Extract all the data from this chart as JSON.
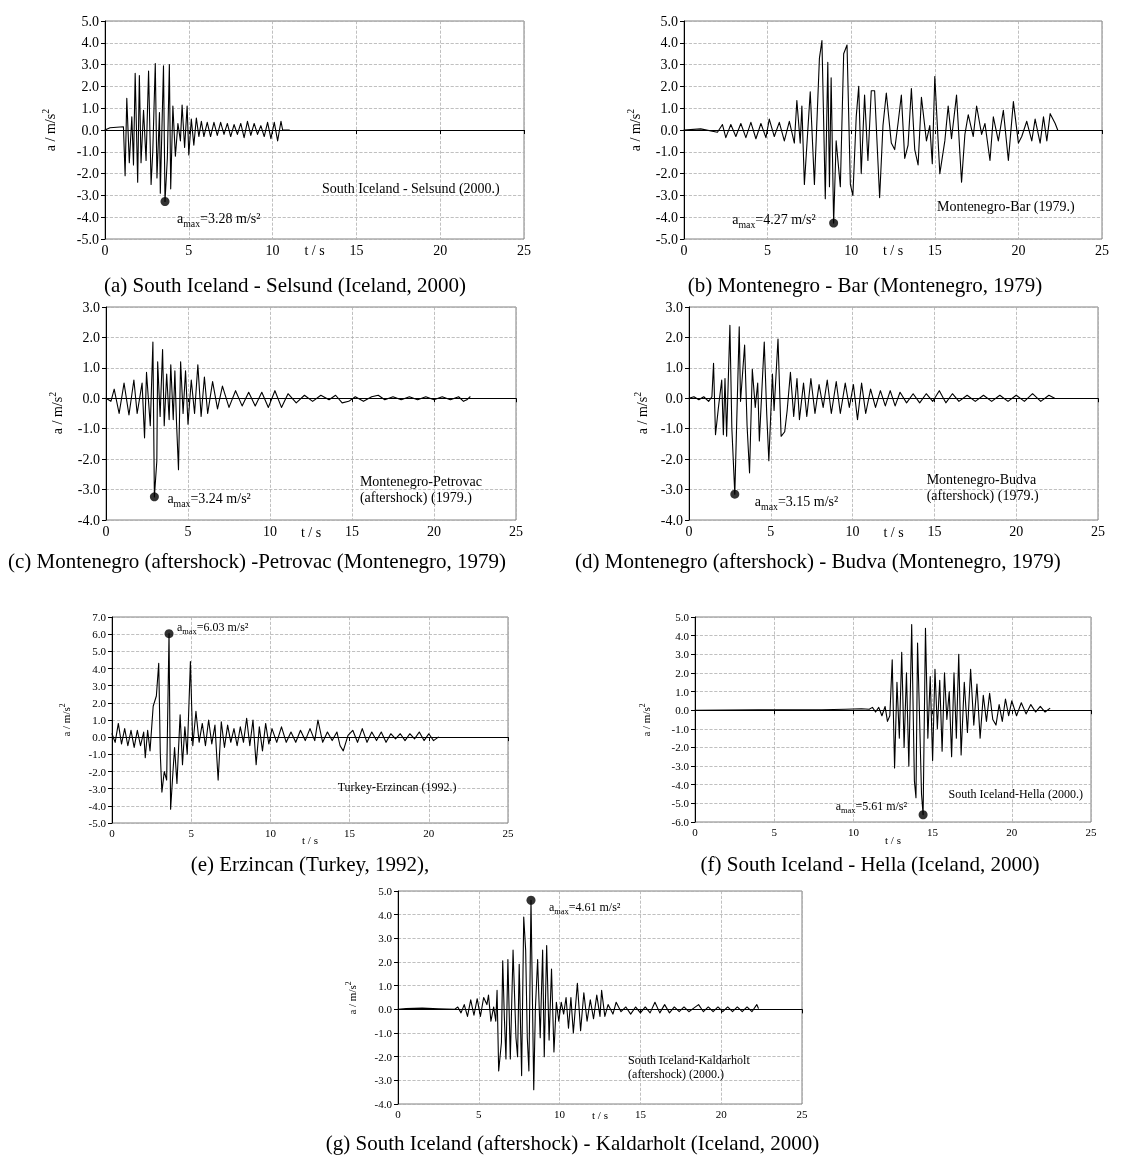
{
  "chart_data": [
    {
      "type": "line",
      "title": "(a) South Iceland - Selsund (Iceland, 2000)",
      "xlabel": "t / s",
      "ylabel": "a / m/s$^{2}$",
      "grid": true,
      "xlim": [
        0,
        25
      ],
      "xticks": [
        0,
        5,
        10,
        15,
        20,
        25
      ],
      "ylim": [
        -5,
        5
      ],
      "yticks": [
        {
          "value": -5,
          "label": "-5.0"
        },
        {
          "value": -4,
          "label": "-4.0"
        },
        {
          "value": -3,
          "label": "-3.0"
        },
        {
          "value": -2,
          "label": "-2.0"
        },
        {
          "value": -1,
          "label": "-1.0"
        },
        {
          "value": 0,
          "label": "0.0"
        },
        {
          "value": 1,
          "label": "1.0"
        },
        {
          "value": 2,
          "label": "2.0"
        },
        {
          "value": 3,
          "label": "3.0"
        },
        {
          "value": 4,
          "label": "4.0"
        },
        {
          "value": 5,
          "label": "5.0"
        }
      ],
      "annotations": [
        {
          "text": "a$_{max}$=3.28 m/s²",
          "x": 3.58,
          "y": -3.28
        },
        "South Iceland - Selsund (2000.)"
      ],
      "series": [
        {
          "type": "line",
          "color": "#000000",
          "marker": "none",
          "x": [
            0,
            0.3,
            1.1,
            1.2,
            1.3,
            1.45,
            1.6,
            1.7,
            1.8,
            1.95,
            2.05,
            2.15,
            2.3,
            2.45,
            2.6,
            2.75,
            2.85,
            3.0,
            3.1,
            3.25,
            3.3,
            3.49,
            3.58,
            3.72,
            3.84,
            3.92,
            4.05,
            4.2,
            4.35,
            4.5,
            4.6,
            4.75,
            4.9,
            5.0,
            5.15,
            5.3,
            5.45,
            5.6,
            5.75,
            5.9,
            6.1,
            6.3,
            6.5,
            6.7,
            6.9,
            7.1,
            7.3,
            7.5,
            7.7,
            7.9,
            8.1,
            8.3,
            8.5,
            8.7,
            8.9,
            9.1,
            9.3,
            9.5,
            9.7,
            9.9,
            10.1,
            10.3,
            10.5,
            10.6,
            11.0
          ],
          "values": [
            0,
            0.1,
            0.15,
            -2.1,
            1.45,
            -1.5,
            0.6,
            -1.6,
            2.6,
            -2.4,
            2.5,
            -1.5,
            0.9,
            -1.4,
            2.7,
            -2.5,
            -1.0,
            3.05,
            -2.2,
            0.8,
            -2.9,
            2.95,
            -3.28,
            -1.3,
            3.0,
            -2.7,
            1.1,
            -1.2,
            0.3,
            -0.5,
            1.15,
            -0.8,
            1.1,
            -1.15,
            0.5,
            -0.7,
            0.55,
            -0.3,
            0.4,
            -0.3,
            0.35,
            -0.3,
            0.35,
            -0.25,
            0.35,
            -0.2,
            0.3,
            -0.3,
            0.25,
            -0.2,
            0.3,
            -0.35,
            0.4,
            -0.25,
            0.3,
            -0.2,
            0.2,
            -0.3,
            0.35,
            -0.4,
            0.35,
            -0.5,
            0.4,
            0,
            0
          ]
        },
        {
          "type": "scatter",
          "color": "#000000",
          "marker": "circle",
          "x": [
            3.58
          ],
          "values": [
            -3.28
          ]
        }
      ]
    },
    {
      "type": "line",
      "title": "(b) Montenegro - Bar (Montenegro, 1979)",
      "xlabel": "t / s",
      "ylabel": "a / m/s$^{2}$",
      "grid": true,
      "xlim": [
        0,
        25
      ],
      "xticks": [
        0,
        5,
        10,
        15,
        20,
        25
      ],
      "ylim": [
        -5,
        5
      ],
      "yticks": [
        {
          "value": -5,
          "label": "-5.0"
        },
        {
          "value": -4,
          "label": "-4.0"
        },
        {
          "value": -3,
          "label": "-3.0"
        },
        {
          "value": -2,
          "label": "-2.0"
        },
        {
          "value": -1,
          "label": "-1.0"
        },
        {
          "value": 0,
          "label": "0.0"
        },
        {
          "value": 1,
          "label": "1.0"
        },
        {
          "value": 2,
          "label": "2.0"
        },
        {
          "value": 3,
          "label": "3.0"
        },
        {
          "value": 4,
          "label": "4.0"
        },
        {
          "value": 5,
          "label": "5.0"
        }
      ],
      "annotations": [
        {
          "text": "a$_{max}$=4.27 m/s²",
          "x": 8.95,
          "y": -4.27
        },
        "Montenegro-Bar (1979.)"
      ],
      "series": [
        {
          "type": "line",
          "color": "#000000",
          "marker": "none",
          "x": [
            0,
            1,
            2,
            2.3,
            2.5,
            2.8,
            3.1,
            3.4,
            3.7,
            4.0,
            4.3,
            4.6,
            4.9,
            5.1,
            5.4,
            5.7,
            6.0,
            6.3,
            6.6,
            6.75,
            6.95,
            7.05,
            7.2,
            7.55,
            7.8,
            8.1,
            8.25,
            8.45,
            8.6,
            8.7,
            8.8,
            8.95,
            9.1,
            9.35,
            9.55,
            9.75,
            9.95,
            10.1,
            10.3,
            10.45,
            10.6,
            10.8,
            11.0,
            11.2,
            11.4,
            11.7,
            11.9,
            12.1,
            12.4,
            12.6,
            12.8,
            13.0,
            13.2,
            13.4,
            13.6,
            13.8,
            14.0,
            14.2,
            14.5,
            14.7,
            14.85,
            15.0,
            15.3,
            15.6,
            15.8,
            16.0,
            16.3,
            16.6,
            16.8,
            17.0,
            17.3,
            17.5,
            17.8,
            18.0,
            18.3,
            18.5,
            18.8,
            19.1,
            19.4,
            19.7,
            20.0,
            20.2,
            20.5,
            20.8,
            21.0,
            21.3,
            21.5,
            21.7,
            21.9,
            22.2,
            22.35
          ],
          "values": [
            0,
            0.05,
            -0.1,
            0.25,
            -0.35,
            0.25,
            -0.3,
            0.3,
            -0.35,
            0.35,
            -0.4,
            0.3,
            -0.35,
            0.5,
            -0.3,
            0.35,
            -0.5,
            0.4,
            -0.6,
            1.35,
            -0.6,
            1.1,
            -2.5,
            1.75,
            -2.5,
            3.3,
            4.1,
            -3.15,
            3.1,
            -2.6,
            2.4,
            -4.27,
            -0.5,
            -2.6,
            3.5,
            3.9,
            -2.5,
            -3.0,
            0.6,
            2.0,
            -2.0,
            1.6,
            -1.4,
            1.8,
            1.8,
            -3.1,
            0.2,
            1.7,
            -0.6,
            -0.9,
            0.3,
            1.6,
            -1.3,
            -0.7,
            1.9,
            -0.9,
            -1.6,
            1.5,
            -0.5,
            0.2,
            -1.55,
            2.45,
            -2.0,
            -0.5,
            1.1,
            -0.4,
            1.6,
            -2.4,
            -0.2,
            0.7,
            -0.3,
            1.1,
            -0.2,
            0.3,
            -1.4,
            0.6,
            -0.5,
            0.9,
            -1.4,
            1.3,
            -0.6,
            -0.3,
            0.4,
            -0.5,
            0.5,
            -0.6,
            0.6,
            -0.5,
            0.75,
            0.3,
            0
          ]
        },
        {
          "type": "scatter",
          "color": "#000000",
          "marker": "circle",
          "x": [
            8.95
          ],
          "values": [
            -4.27
          ]
        }
      ]
    },
    {
      "type": "line",
      "title": "(c) Montenegro (aftershock) -Petrovac (Montenegro, 1979)",
      "xlabel": "t / s",
      "ylabel": "a / m/s$^{2}$",
      "grid": true,
      "xlim": [
        0,
        25
      ],
      "xticks": [
        0,
        5,
        10,
        15,
        20,
        25
      ],
      "ylim": [
        -4,
        3
      ],
      "yticks": [
        {
          "value": -4,
          "label": "-4.0"
        },
        {
          "value": -3,
          "label": "-3.0"
        },
        {
          "value": -2,
          "label": "-2.0"
        },
        {
          "value": -1,
          "label": "-1.0"
        },
        {
          "value": 0,
          "label": "0.0"
        },
        {
          "value": 1,
          "label": "1.0"
        },
        {
          "value": 2,
          "label": "2.0"
        },
        {
          "value": 3,
          "label": "3.0"
        }
      ],
      "annotations": [
        {
          "text": "a$_{max}$=3.24 m/s²",
          "x": 2.95,
          "y": -3.24
        },
        "Montenegro-Petrovac (aftershock) (1979.)"
      ],
      "series": [
        {
          "type": "line",
          "color": "#000000",
          "marker": "none",
          "x": [
            0,
            0.3,
            0.5,
            0.8,
            1.1,
            1.4,
            1.7,
            1.9,
            2.2,
            2.35,
            2.47,
            2.7,
            2.86,
            2.95,
            3.1,
            3.15,
            3.3,
            3.45,
            3.55,
            3.7,
            3.85,
            3.95,
            4.1,
            4.2,
            4.3,
            4.42,
            4.55,
            4.7,
            4.85,
            5.0,
            5.2,
            5.4,
            5.6,
            5.8,
            6.0,
            6.2,
            6.5,
            6.8,
            7.1,
            7.5,
            7.9,
            8.3,
            8.7,
            9.1,
            9.5,
            9.9,
            10.3,
            10.7,
            11.1,
            11.6,
            12.1,
            12.6,
            13.1,
            13.6,
            14.0,
            14.4,
            14.8,
            15.2,
            15.7,
            16.2,
            16.6,
            17.0,
            17.5,
            18.0,
            18.5,
            19.0,
            19.5,
            20.0,
            20.5,
            21.0,
            21.5,
            21.8,
            22.0,
            22.2
          ],
          "values": [
            0,
            -0.1,
            0.3,
            -0.5,
            0.5,
            -0.55,
            0.6,
            -0.5,
            0.5,
            -1.3,
            0.85,
            -0.9,
            1.85,
            -3.24,
            -2.05,
            1.2,
            -0.6,
            1.6,
            -0.9,
            0.8,
            -0.7,
            1.1,
            -0.7,
            0.9,
            -0.8,
            -2.35,
            1.2,
            -0.5,
            0.9,
            -0.85,
            0.6,
            -0.5,
            1.1,
            -0.6,
            0.7,
            -0.5,
            0.55,
            -0.35,
            0.4,
            -0.3,
            0.25,
            -0.25,
            0.2,
            -0.25,
            0.2,
            -0.3,
            0.25,
            -0.3,
            0.15,
            -0.15,
            0.1,
            -0.1,
            0.1,
            -0.05,
            0.1,
            -0.15,
            -0.1,
            0.05,
            -0.1,
            0.05,
            0.1,
            -0.05,
            0.05,
            -0.05,
            0.05,
            -0.05,
            0.05,
            -0.05,
            0.05,
            -0.05,
            0.05,
            -0.1,
            -0.05,
            0.05
          ]
        },
        {
          "type": "scatter",
          "color": "#000000",
          "marker": "circle",
          "x": [
            2.95
          ],
          "values": [
            -3.24
          ]
        }
      ]
    },
    {
      "type": "line",
      "title": "(d) Montenegro (aftershock) - Budva (Montenegro, 1979)",
      "xlabel": "t / s",
      "ylabel": "a / m/s$^{2}$",
      "grid": true,
      "xlim": [
        0,
        25
      ],
      "xticks": [
        0,
        5,
        10,
        15,
        20,
        25
      ],
      "ylim": [
        -4,
        3
      ],
      "yticks": [
        {
          "value": -4,
          "label": "-4.0"
        },
        {
          "value": -3,
          "label": "-3.0"
        },
        {
          "value": -2,
          "label": "-2.0"
        },
        {
          "value": -1,
          "label": "-1.0"
        },
        {
          "value": 0,
          "label": "0.0"
        },
        {
          "value": 1,
          "label": "1.0"
        },
        {
          "value": 2,
          "label": "2.0"
        },
        {
          "value": 3,
          "label": "3.0"
        }
      ],
      "annotations": [
        {
          "text": "a$_{max}$=3.15 m/s²",
          "x": 2.8,
          "y": -3.15
        },
        "Montenegro-Budva (aftershock)  (1979.)"
      ],
      "series": [
        {
          "type": "line",
          "color": "#000000",
          "marker": "none",
          "x": [
            0,
            0.3,
            0.6,
            0.9,
            1.2,
            1.4,
            1.5,
            1.62,
            1.8,
            2.0,
            2.1,
            2.2,
            2.3,
            2.5,
            2.62,
            2.8,
            3.07,
            3.15,
            3.4,
            3.55,
            3.7,
            3.87,
            4.05,
            4.2,
            4.3,
            4.6,
            4.75,
            4.88,
            5.1,
            5.2,
            5.44,
            5.63,
            5.85,
            6.0,
            6.2,
            6.4,
            6.6,
            6.75,
            7.0,
            7.2,
            7.45,
            7.7,
            7.95,
            8.2,
            8.45,
            8.7,
            9.0,
            9.25,
            9.55,
            9.8,
            10.05,
            10.3,
            10.55,
            10.8,
            11.1,
            11.4,
            11.7,
            12.0,
            12.3,
            12.6,
            12.9,
            13.3,
            13.7,
            14.1,
            14.5,
            14.9,
            15.3,
            15.7,
            16.1,
            16.5,
            17.0,
            17.5,
            18.0,
            18.5,
            19.0,
            19.5,
            20.0,
            20.5,
            21.0,
            21.5,
            22.0,
            22.35
          ],
          "values": [
            0,
            0.05,
            -0.05,
            0.05,
            -0.1,
            0.05,
            1.15,
            -1.2,
            -0.3,
            0.6,
            -1.2,
            0.65,
            -1.25,
            2.4,
            -1.0,
            -3.15,
            2.35,
            -0.1,
            1.75,
            -0.9,
            -2.45,
            0.95,
            -0.3,
            0.5,
            -1.4,
            1.85,
            -0.5,
            -2.05,
            0.8,
            -0.4,
            1.95,
            -1.25,
            -1.1,
            -0.4,
            0.85,
            -0.6,
            0.65,
            -0.7,
            0.5,
            -0.6,
            0.65,
            -0.5,
            0.45,
            -0.3,
            0.6,
            -0.5,
            0.55,
            -0.5,
            0.5,
            -0.3,
            0.45,
            -0.7,
            0.5,
            -0.5,
            0.3,
            -0.3,
            0.25,
            -0.25,
            0.25,
            -0.25,
            0.2,
            -0.15,
            0.15,
            -0.15,
            0.15,
            -0.1,
            0.25,
            -0.15,
            0.15,
            -0.1,
            0.1,
            -0.1,
            0.1,
            -0.1,
            0.1,
            -0.1,
            0.1,
            -0.1,
            0.15,
            -0.1,
            0.1,
            0
          ]
        },
        {
          "type": "scatter",
          "color": "#000000",
          "marker": "circle",
          "x": [
            2.8
          ],
          "values": [
            -3.15
          ]
        }
      ]
    },
    {
      "type": "line",
      "title": "(e) Erzincan (Turkey, 1992),",
      "xlabel": "t / s",
      "ylabel": "a / m/s$^{2}$",
      "grid": true,
      "xlim": [
        0,
        25
      ],
      "xticks": [
        0,
        5,
        10,
        15,
        20,
        25
      ],
      "ylim": [
        -5,
        7
      ],
      "yticks": [
        {
          "value": -5,
          "label": "-5.0"
        },
        {
          "value": -4,
          "label": "-4.0"
        },
        {
          "value": -3,
          "label": "-3.0"
        },
        {
          "value": -2,
          "label": "-2.0"
        },
        {
          "value": -1,
          "label": "-1.0"
        },
        {
          "value": 0,
          "label": "0.0"
        },
        {
          "value": 1,
          "label": "1.0"
        },
        {
          "value": 2,
          "label": "2.0"
        },
        {
          "value": 3,
          "label": "3.0"
        },
        {
          "value": 4,
          "label": "4.0"
        },
        {
          "value": 5,
          "label": "5.0"
        },
        {
          "value": 6,
          "label": "6.0"
        },
        {
          "value": 7,
          "label": "7.0"
        }
      ],
      "annotations": [
        {
          "text": "a$_{max}$=6.03 m/s²",
          "x": 3.6,
          "y": 6.03
        },
        "Turkey-Erzincan (1992.)"
      ],
      "series": [
        {
          "type": "line",
          "color": "#000000",
          "marker": "none",
          "x": [
            0,
            0.2,
            0.4,
            0.6,
            0.8,
            1.0,
            1.2,
            1.4,
            1.6,
            1.8,
            2.0,
            2.1,
            2.25,
            2.4,
            2.6,
            2.8,
            2.95,
            3.05,
            3.15,
            3.3,
            3.45,
            3.6,
            3.7,
            3.85,
            3.95,
            4.1,
            4.3,
            4.45,
            4.6,
            4.75,
            4.95,
            5.1,
            5.3,
            5.5,
            5.7,
            5.9,
            6.1,
            6.3,
            6.5,
            6.7,
            6.9,
            7.1,
            7.3,
            7.5,
            7.7,
            7.9,
            8.1,
            8.3,
            8.5,
            8.7,
            8.9,
            9.1,
            9.3,
            9.5,
            9.7,
            9.9,
            10.1,
            10.4,
            10.7,
            11.0,
            11.3,
            11.6,
            11.9,
            12.2,
            12.5,
            12.8,
            13.0,
            13.3,
            13.6,
            13.9,
            14.2,
            14.4,
            14.6,
            14.9,
            15.2,
            15.5,
            15.8,
            16.1,
            16.4,
            16.7,
            17.0,
            17.3,
            17.6,
            17.9,
            18.2,
            18.5,
            18.8,
            19.1,
            19.4,
            19.7,
            20.0,
            20.3,
            20.6
          ],
          "values": [
            0.2,
            -0.3,
            0.8,
            -0.4,
            0.5,
            -0.5,
            0.4,
            -0.6,
            0.4,
            -0.5,
            0.3,
            -1.2,
            0.4,
            -0.8,
            1.8,
            2.4,
            4.3,
            -1.0,
            -3.2,
            -2.0,
            -2.5,
            6.03,
            -4.2,
            -2.0,
            -0.6,
            -2.7,
            1.3,
            -1.6,
            0.6,
            -1.0,
            4.4,
            -0.5,
            1.5,
            -0.3,
            0.8,
            -0.5,
            1.0,
            -0.4,
            0.7,
            -2.5,
            0.9,
            -0.6,
            0.7,
            -0.3,
            0.5,
            -0.5,
            0.6,
            -0.3,
            1.1,
            -0.5,
            1.0,
            -1.6,
            0.6,
            -0.8,
            0.8,
            -0.4,
            0.5,
            -0.3,
            0.6,
            -0.3,
            0.3,
            -0.3,
            0.4,
            -0.2,
            0.5,
            -0.2,
            1.0,
            -0.3,
            0.3,
            -0.2,
            0.3,
            -0.5,
            -0.8,
            0.1,
            0.4,
            -0.3,
            0.5,
            -0.3,
            0.3,
            -0.2,
            0.3,
            -0.3,
            0.2,
            -0.1,
            0.2,
            -0.2,
            0.2,
            -0.1,
            0.3,
            -0.2,
            0.2,
            -0.2,
            0
          ]
        },
        {
          "type": "scatter",
          "color": "#000000",
          "marker": "circle",
          "x": [
            3.6
          ],
          "values": [
            6.03
          ]
        }
      ]
    },
    {
      "type": "line",
      "title": "(f) South Iceland - Hella (Iceland, 2000)",
      "xlabel": "t / s",
      "ylabel": "a / m/s$^{2}$",
      "grid": true,
      "xlim": [
        0,
        25
      ],
      "xticks": [
        0,
        5,
        10,
        15,
        20,
        25
      ],
      "ylim": [
        -6,
        5
      ],
      "yticks": [
        {
          "value": -6,
          "label": "-6.0"
        },
        {
          "value": -5,
          "label": "-5.0"
        },
        {
          "value": -4,
          "label": "-4.0"
        },
        {
          "value": -3,
          "label": "-3.0"
        },
        {
          "value": -2,
          "label": "-2.0"
        },
        {
          "value": -1,
          "label": "-1.0"
        },
        {
          "value": 0,
          "label": "0.0"
        },
        {
          "value": 1,
          "label": "1.0"
        },
        {
          "value": 2,
          "label": "2.0"
        },
        {
          "value": 3,
          "label": "3.0"
        },
        {
          "value": 4,
          "label": "4.0"
        },
        {
          "value": 5,
          "label": "5.0"
        }
      ],
      "annotations": [
        {
          "text": "a$_{max}$=5.61 m/s²",
          "x": 14.4,
          "y": -5.61
        },
        "South Iceland-Hella (2000.)"
      ],
      "series": [
        {
          "type": "line",
          "color": "#000000",
          "marker": "none",
          "x": [
            0,
            4,
            8,
            9.5,
            10.5,
            11,
            11.2,
            11.4,
            11.6,
            11.8,
            12.0,
            12.15,
            12.3,
            12.45,
            12.6,
            12.75,
            12.9,
            13.05,
            13.2,
            13.35,
            13.5,
            13.68,
            13.85,
            13.95,
            14.05,
            14.15,
            14.3,
            14.4,
            14.55,
            14.7,
            14.85,
            15.0,
            15.15,
            15.3,
            15.45,
            15.6,
            15.75,
            15.9,
            16.05,
            16.2,
            16.35,
            16.5,
            16.65,
            16.8,
            17.0,
            17.2,
            17.4,
            17.6,
            17.8,
            18.0,
            18.2,
            18.4,
            18.6,
            18.8,
            19.0,
            19.2,
            19.4,
            19.6,
            19.8,
            20.0,
            20.3,
            20.6,
            20.9,
            21.2,
            21.5,
            21.8,
            22.1,
            22.4
          ],
          "values": [
            0,
            0.02,
            0.02,
            0.05,
            0.08,
            0.05,
            0.15,
            -0.1,
            0.15,
            -0.3,
            0.2,
            -0.6,
            -0.3,
            2.7,
            -3.1,
            1.5,
            -1.5,
            3.1,
            -2.0,
            2.0,
            -3.0,
            4.6,
            -3.8,
            -4.7,
            3.6,
            0.5,
            -4.5,
            -5.61,
            4.4,
            -1.5,
            1.8,
            -2.7,
            2.2,
            -1.0,
            1.6,
            -2.2,
            2.0,
            -0.5,
            1.0,
            -2.5,
            2.0,
            -1.5,
            3.0,
            -2.4,
            1.5,
            -1.2,
            2.2,
            -0.8,
            1.4,
            -1.5,
            0.8,
            -0.6,
            0.9,
            -0.5,
            -0.8,
            0.3,
            -0.6,
            0.6,
            -0.3,
            0.5,
            -0.3,
            0.4,
            -0.2,
            0.3,
            -0.1,
            0.2,
            -0.1,
            0.1
          ]
        },
        {
          "type": "scatter",
          "color": "#000000",
          "marker": "circle",
          "x": [
            14.4
          ],
          "values": [
            -5.61
          ]
        }
      ]
    },
    {
      "type": "line",
      "title": "(g) South Iceland (aftershock) - Kaldarholt (Iceland, 2000)",
      "xlabel": "t / s",
      "ylabel": "a / m/s$^{2}$",
      "grid": true,
      "xlim": [
        0,
        25
      ],
      "xticks": [
        0,
        5,
        10,
        15,
        20,
        25
      ],
      "ylim": [
        -4,
        5
      ],
      "yticks": [
        {
          "value": -4,
          "label": "-4.0"
        },
        {
          "value": -3,
          "label": "-3.0"
        },
        {
          "value": -2,
          "label": "-2.0"
        },
        {
          "value": -1,
          "label": "-1.0"
        },
        {
          "value": 0,
          "label": "0.0"
        },
        {
          "value": 1,
          "label": "1.0"
        },
        {
          "value": 2,
          "label": "2.0"
        },
        {
          "value": 3,
          "label": "3.0"
        },
        {
          "value": 4,
          "label": "4.0"
        },
        {
          "value": 5,
          "label": "5.0"
        }
      ],
      "annotations": [
        {
          "text": "a$_{max}$=4.61 m/s²",
          "x": 8.23,
          "y": 4.61
        },
        "South Iceland-Kaldarholt (aftershock) (2000.)"
      ],
      "series": [
        {
          "type": "line",
          "color": "#000000",
          "marker": "none",
          "x": [
            0,
            0.5,
            1.5,
            2.5,
            3.5,
            3.7,
            3.9,
            4.1,
            4.3,
            4.5,
            4.7,
            4.9,
            5.1,
            5.3,
            5.5,
            5.6,
            5.75,
            5.92,
            6.05,
            6.13,
            6.23,
            6.4,
            6.48,
            6.58,
            6.68,
            6.8,
            6.95,
            7.12,
            7.3,
            7.4,
            7.5,
            7.65,
            7.78,
            7.9,
            8.0,
            8.1,
            8.23,
            8.4,
            8.5,
            8.64,
            8.8,
            8.95,
            9.05,
            9.2,
            9.35,
            9.5,
            9.65,
            9.8,
            9.95,
            10.1,
            10.25,
            10.4,
            10.55,
            10.7,
            10.85,
            11.1,
            11.3,
            11.5,
            11.7,
            11.9,
            12.1,
            12.3,
            12.5,
            12.6,
            12.8,
            13.0,
            13.3,
            13.5,
            13.8,
            14.1,
            14.4,
            14.7,
            15.0,
            15.3,
            15.6,
            15.9,
            16.2,
            16.5,
            16.8,
            17.1,
            17.4,
            17.7,
            18.0,
            18.3,
            18.6,
            18.9,
            19.2,
            19.5,
            19.8,
            20.1,
            20.4,
            20.7,
            21.0,
            21.3,
            21.6,
            21.9,
            22.2,
            22.3
          ],
          "values": [
            0,
            0.03,
            0.05,
            0.02,
            0,
            0.1,
            -0.15,
            0.2,
            -0.3,
            0.4,
            -0.25,
            0.45,
            -0.3,
            0.5,
            0.2,
            0.6,
            -0.5,
            0.1,
            -0.5,
            0.8,
            -2.6,
            -1.4,
            2.05,
            -0.3,
            -2.1,
            2.1,
            -2.1,
            2.5,
            -1.2,
            -2.0,
            1.9,
            -2.8,
            3.9,
            2.5,
            -1.2,
            -2.6,
            4.61,
            -3.4,
            0,
            2.1,
            -1.2,
            2.5,
            -2.0,
            2.7,
            -1.3,
            1.7,
            -1.8,
            0.3,
            -0.5,
            0.3,
            -0.2,
            0.5,
            -0.8,
            0.5,
            -1.0,
            1.1,
            -0.9,
            0.7,
            -0.5,
            0.4,
            -0.4,
            0.6,
            -0.3,
            0.8,
            -0.3,
            0.2,
            -0.2,
            0.3,
            -0.1,
            0.1,
            -0.2,
            0.1,
            -0.15,
            0.1,
            -0.15,
            0.3,
            -0.15,
            0.2,
            -0.15,
            0.1,
            -0.1,
            0.1,
            -0.1,
            0.05,
            0.2,
            -0.1,
            0.1,
            -0.1,
            0.1,
            -0.1,
            0.1,
            -0.1,
            0.1,
            -0.1,
            0.1,
            -0.1,
            0.2,
            0.05
          ]
        },
        {
          "type": "scatter",
          "color": "#000000",
          "marker": "circle",
          "x": [
            8.23
          ],
          "values": [
            4.61
          ]
        }
      ]
    }
  ]
}
